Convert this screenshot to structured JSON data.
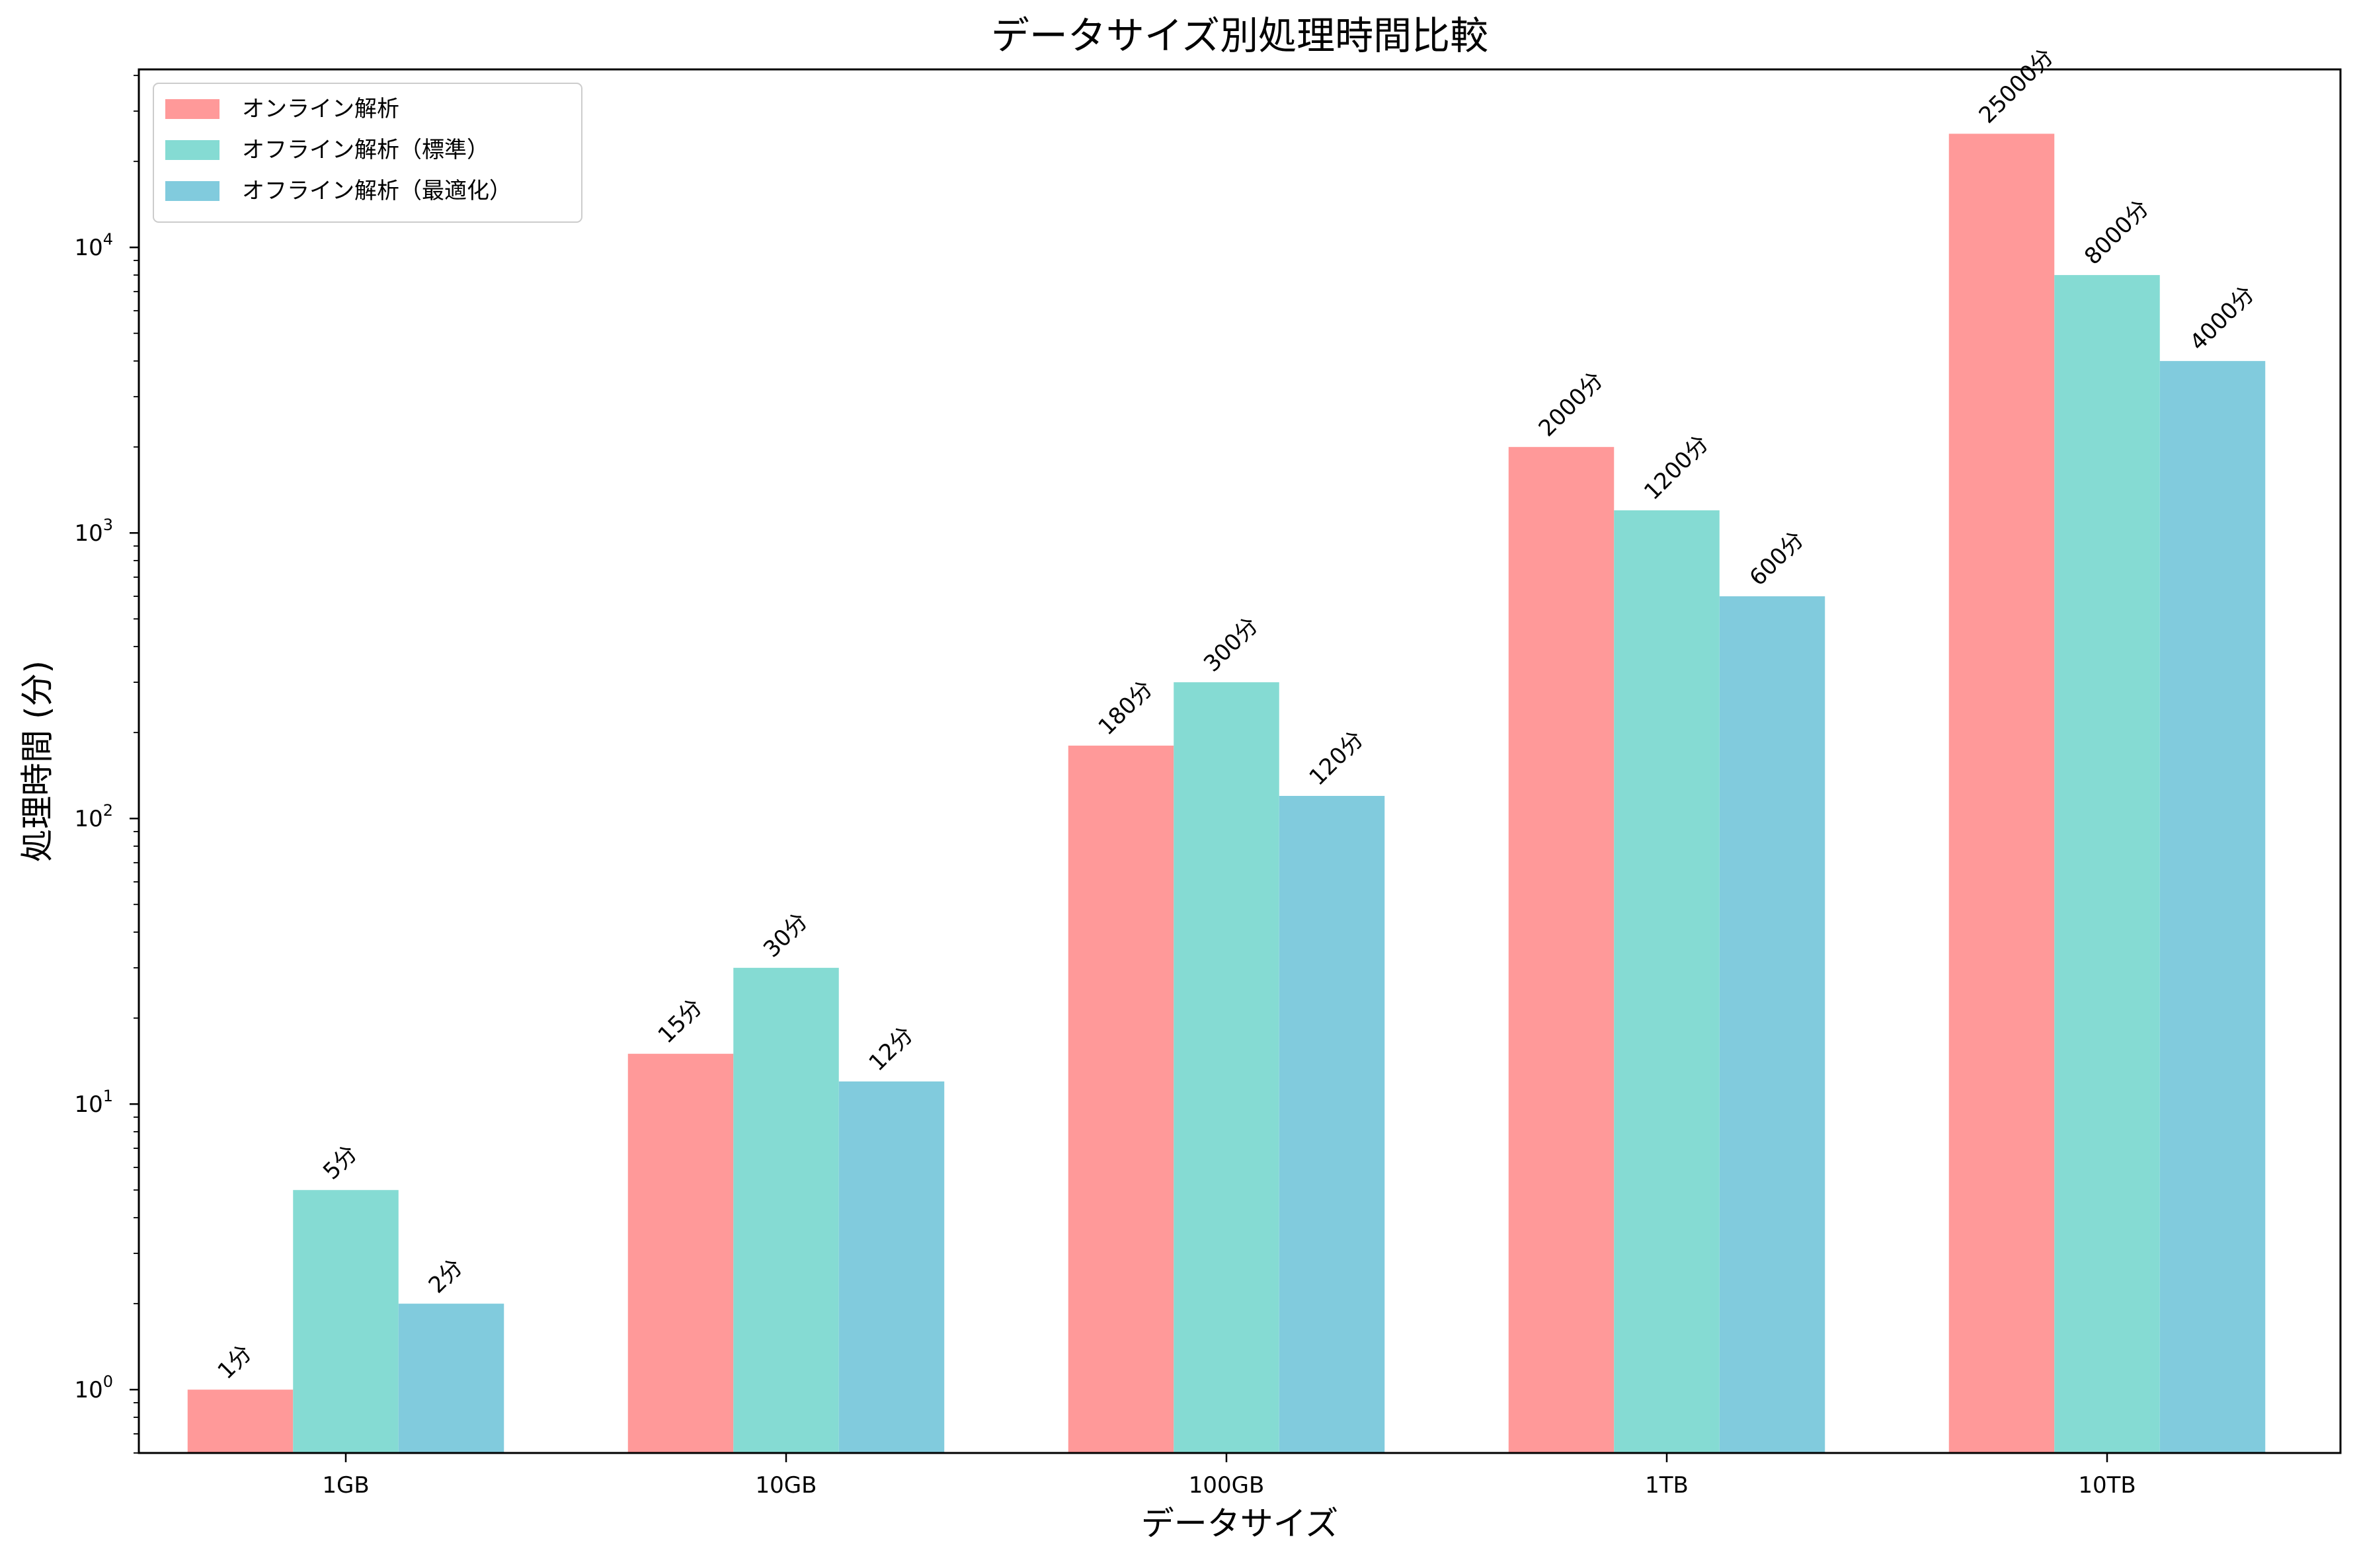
{
  "chart_data": {
    "type": "bar",
    "title": "データサイズ別処理時間比較",
    "xlabel": "データサイズ",
    "ylabel": "処理時間 (分)",
    "yscale": "log",
    "ylim": [
      0.6,
      42000
    ],
    "yticks": [
      1,
      10,
      100,
      1000,
      10000
    ],
    "grid": false,
    "legend_position": "top-left",
    "categories": [
      "1GB",
      "10GB",
      "100GB",
      "1TB",
      "10TB"
    ],
    "series": [
      {
        "name": "オンライン解析",
        "color": "#ff9999",
        "values": [
          1,
          15,
          180,
          2000,
          25000
        ],
        "labels": [
          "1分",
          "15分",
          "180分",
          "2000分",
          "25000分"
        ]
      },
      {
        "name": "オフライン解析（標準）",
        "color": "#85dbd3",
        "values": [
          5,
          30,
          300,
          1200,
          8000
        ],
        "labels": [
          "5分",
          "30分",
          "300分",
          "1200分",
          "8000分"
        ]
      },
      {
        "name": "オフライン解析（最適化）",
        "color": "#81cbdd",
        "values": [
          2,
          12,
          120,
          600,
          4000
        ],
        "labels": [
          "2分",
          "12分",
          "120分",
          "600分",
          "4000分"
        ]
      }
    ]
  }
}
